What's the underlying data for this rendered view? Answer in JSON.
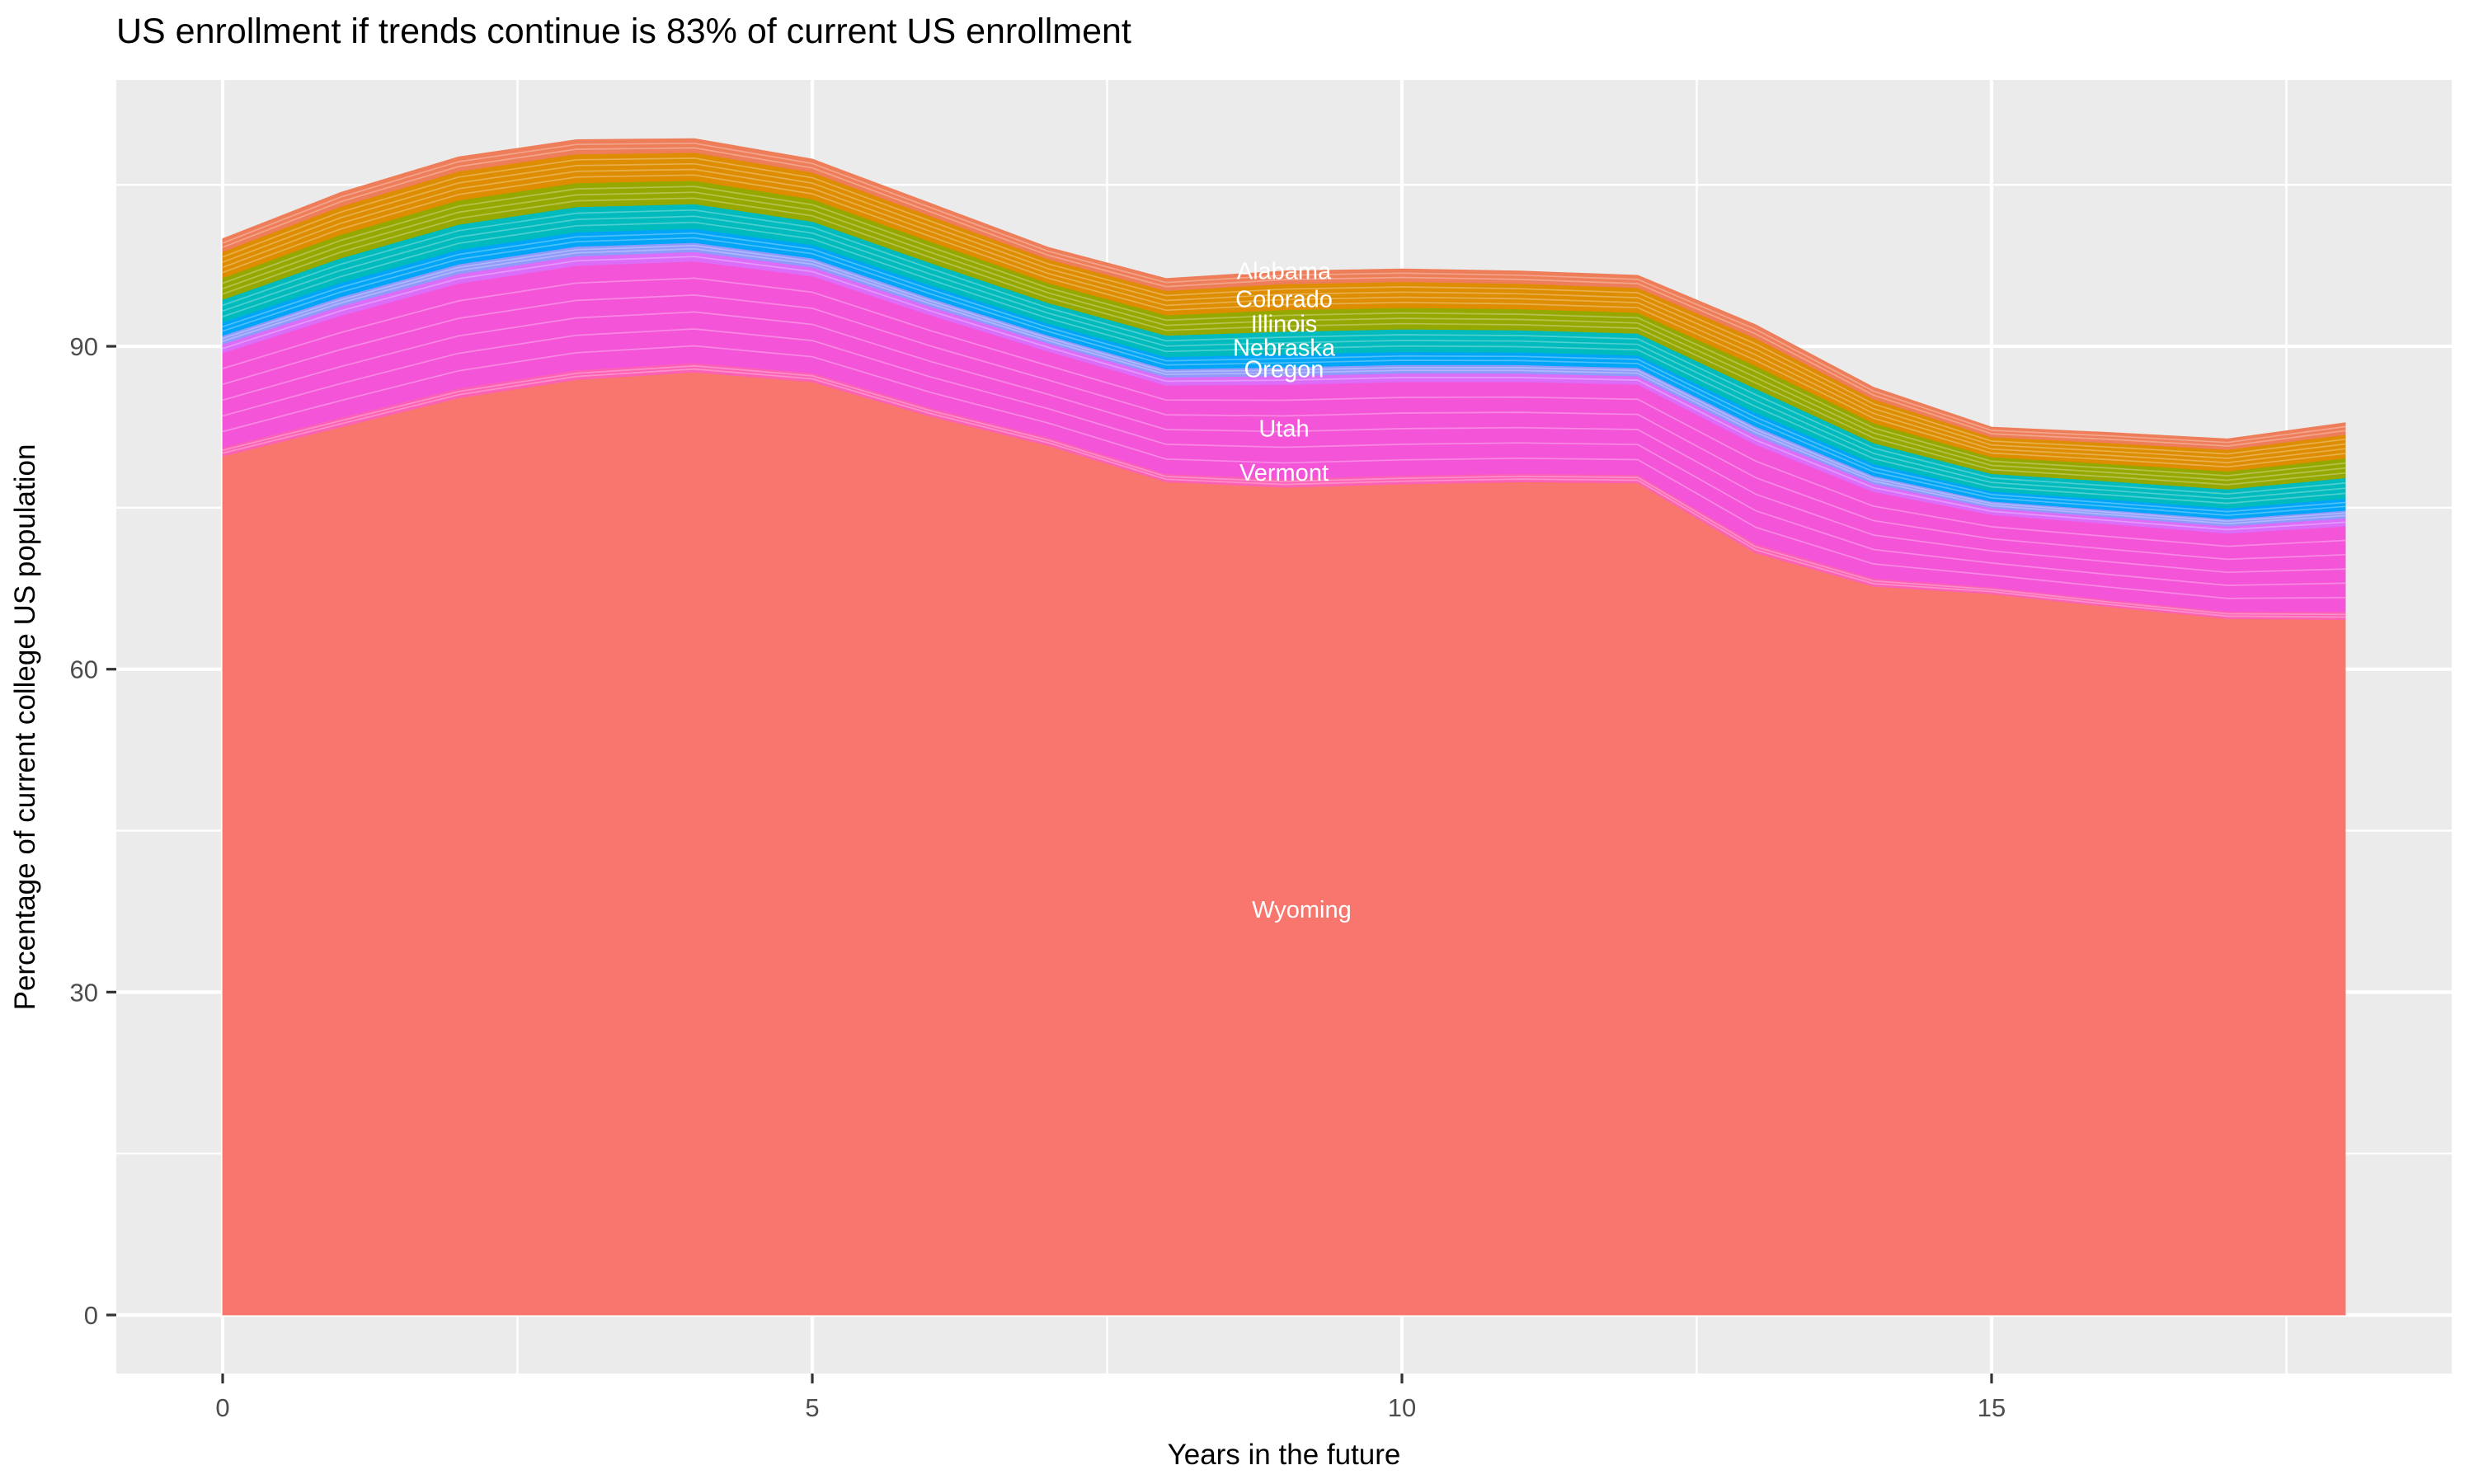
{
  "chart_data": {
    "type": "area",
    "stacked": true,
    "title": "US enrollment if trends continue is 83% of current US enrollment",
    "xlabel": "Years in the future",
    "ylabel": "Percentage of current college US population",
    "x": [
      0,
      1,
      2,
      3,
      4,
      5,
      6,
      7,
      8,
      9,
      10,
      11,
      12,
      13,
      14,
      15,
      16,
      17,
      18
    ],
    "x_ticks": [
      0,
      5,
      10,
      15
    ],
    "x_tick_labels": [
      "0",
      "5",
      "10",
      "15"
    ],
    "y_ticks": [
      0,
      30,
      60,
      90
    ],
    "y_tick_labels": [
      "0",
      "30",
      "60",
      "90"
    ],
    "x_minor_ticks": [
      2.5,
      7.5,
      12.5,
      17.5
    ],
    "y_minor_ticks": [
      15,
      45,
      75,
      105
    ],
    "xlim": [
      -0.9,
      18.9
    ],
    "ylim": [
      -5.5,
      114.8
    ],
    "grid": "on",
    "legend": "none",
    "panel_color": "#EBEBEB",
    "gridline_color": "#FFFFFF",
    "tick_text_color": "#4D4D4D",
    "series": [
      {
        "name": "stack_total_top_pct",
        "values": [
          100.0,
          104.3,
          107.6,
          109.2,
          109.3,
          107.4,
          103.3,
          99.2,
          96.3,
          97.0,
          97.2,
          97.0,
          96.6,
          92.0,
          86.2,
          82.5,
          82.0,
          81.4,
          82.9
        ]
      },
      {
        "name": "wyoming_band_top_pct",
        "values": [
          79.8,
          82.5,
          85.2,
          86.9,
          87.6,
          86.7,
          83.5,
          80.8,
          77.4,
          76.9,
          77.2,
          77.4,
          77.3,
          70.8,
          67.7,
          67.0,
          65.8,
          64.7,
          64.6
        ]
      }
    ],
    "bands": [
      {
        "name": "wyoming",
        "color": "#F8766D",
        "f_from": -1,
        "f_to": 0,
        "stripes": 0
      },
      {
        "name": "pink-stripe",
        "color": "#FC61B5",
        "f_from": 0,
        "f_to": 0.04,
        "stripes": 2
      },
      {
        "name": "magenta",
        "color": "#F455D8",
        "f_from": 0.04,
        "f_to": 0.475,
        "stripes": 5
      },
      {
        "name": "violet",
        "color": "#DB6DF8",
        "f_from": 0.475,
        "f_to": 0.515,
        "stripes": 1
      },
      {
        "name": "periwinkle",
        "color": "#8F9AFB",
        "f_from": 0.515,
        "f_to": 0.555,
        "stripes": 2
      },
      {
        "name": "blue",
        "color": "#00A5F7",
        "f_from": 0.555,
        "f_to": 0.615,
        "stripes": 2
      },
      {
        "name": "teal",
        "color": "#00BBBD",
        "f_from": 0.615,
        "f_to": 0.72,
        "stripes": 3
      },
      {
        "name": "olive",
        "color": "#95A800",
        "f_from": 0.72,
        "f_to": 0.82,
        "stripes": 3
      },
      {
        "name": "orange",
        "color": "#DE8D00",
        "f_from": 0.82,
        "f_to": 0.94,
        "stripes": 4
      },
      {
        "name": "salmon",
        "color": "#EE7D5A",
        "f_from": 0.94,
        "f_to": 1.0,
        "stripes": 2
      }
    ],
    "annotations": [
      {
        "text": "Alabama",
        "x": 9.0,
        "y": 97.0
      },
      {
        "text": "Colorado",
        "x": 9.0,
        "y": 94.4
      },
      {
        "text": "Illinois",
        "x": 9.0,
        "y": 92.1
      },
      {
        "text": "Nebraska",
        "x": 9.0,
        "y": 89.9
      },
      {
        "text": "Oregon",
        "x": 9.0,
        "y": 87.9
      },
      {
        "text": "Utah",
        "x": 9.0,
        "y": 82.4
      },
      {
        "text": "Vermont",
        "x": 9.0,
        "y": 78.3
      },
      {
        "text": "Wyoming",
        "x": 9.15,
        "y": 37.7
      }
    ]
  }
}
